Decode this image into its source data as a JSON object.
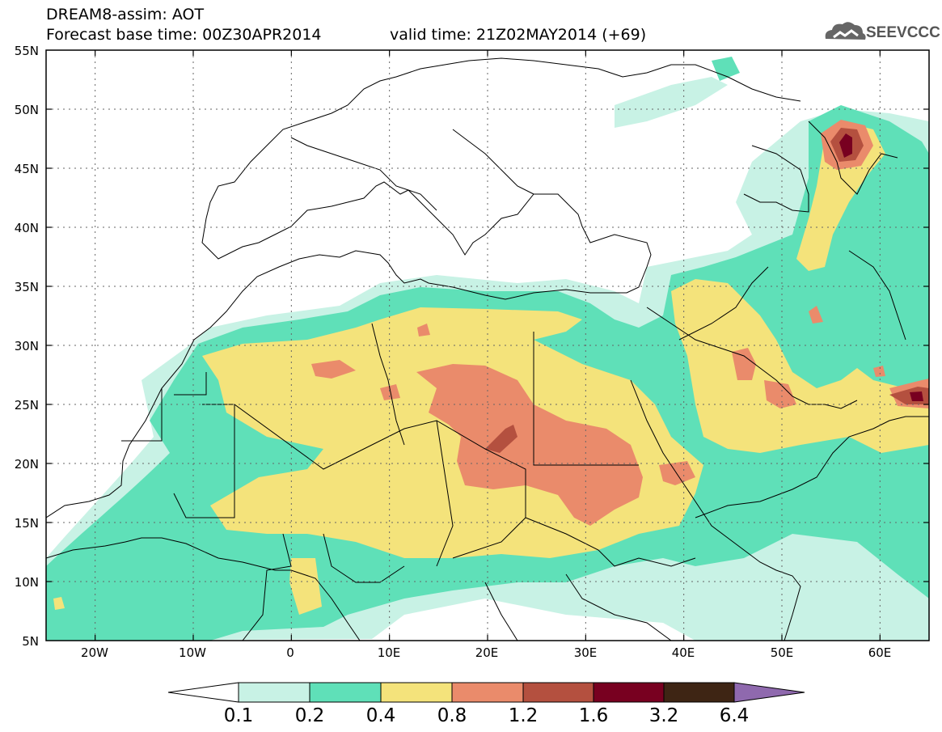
{
  "title": {
    "line1": "DREAM8-assim: AOT",
    "line2": "Forecast base time: 00Z30APR2014",
    "valid": "valid time: 21Z02MAY2014 (+69)"
  },
  "logo": {
    "text": "SEEVCCC",
    "icon": "cloud-icon"
  },
  "map": {
    "lat_labels": [
      "55N",
      "50N",
      "45N",
      "40N",
      "35N",
      "30N",
      "25N",
      "20N",
      "15N",
      "10N",
      "5N"
    ],
    "lon_labels": [
      "20W",
      "10W",
      "0",
      "10E",
      "20E",
      "30E",
      "40E",
      "50E",
      "60E"
    ],
    "field": "Aerosol optical thickness (dust)",
    "extent": {
      "lon_min": -25,
      "lon_max": 65,
      "lat_min": 5,
      "lat_max": 55
    }
  },
  "colorbar": {
    "labels": [
      "0.1",
      "0.2",
      "0.4",
      "0.8",
      "1.2",
      "1.6",
      "3.2",
      "6.4"
    ],
    "colors": [
      "#ffffff",
      "#c8f2e5",
      "#5fe0b8",
      "#f4e37b",
      "#ea8b6b",
      "#b4503f",
      "#780020",
      "#3e2514",
      "#8f69ae"
    ]
  }
}
